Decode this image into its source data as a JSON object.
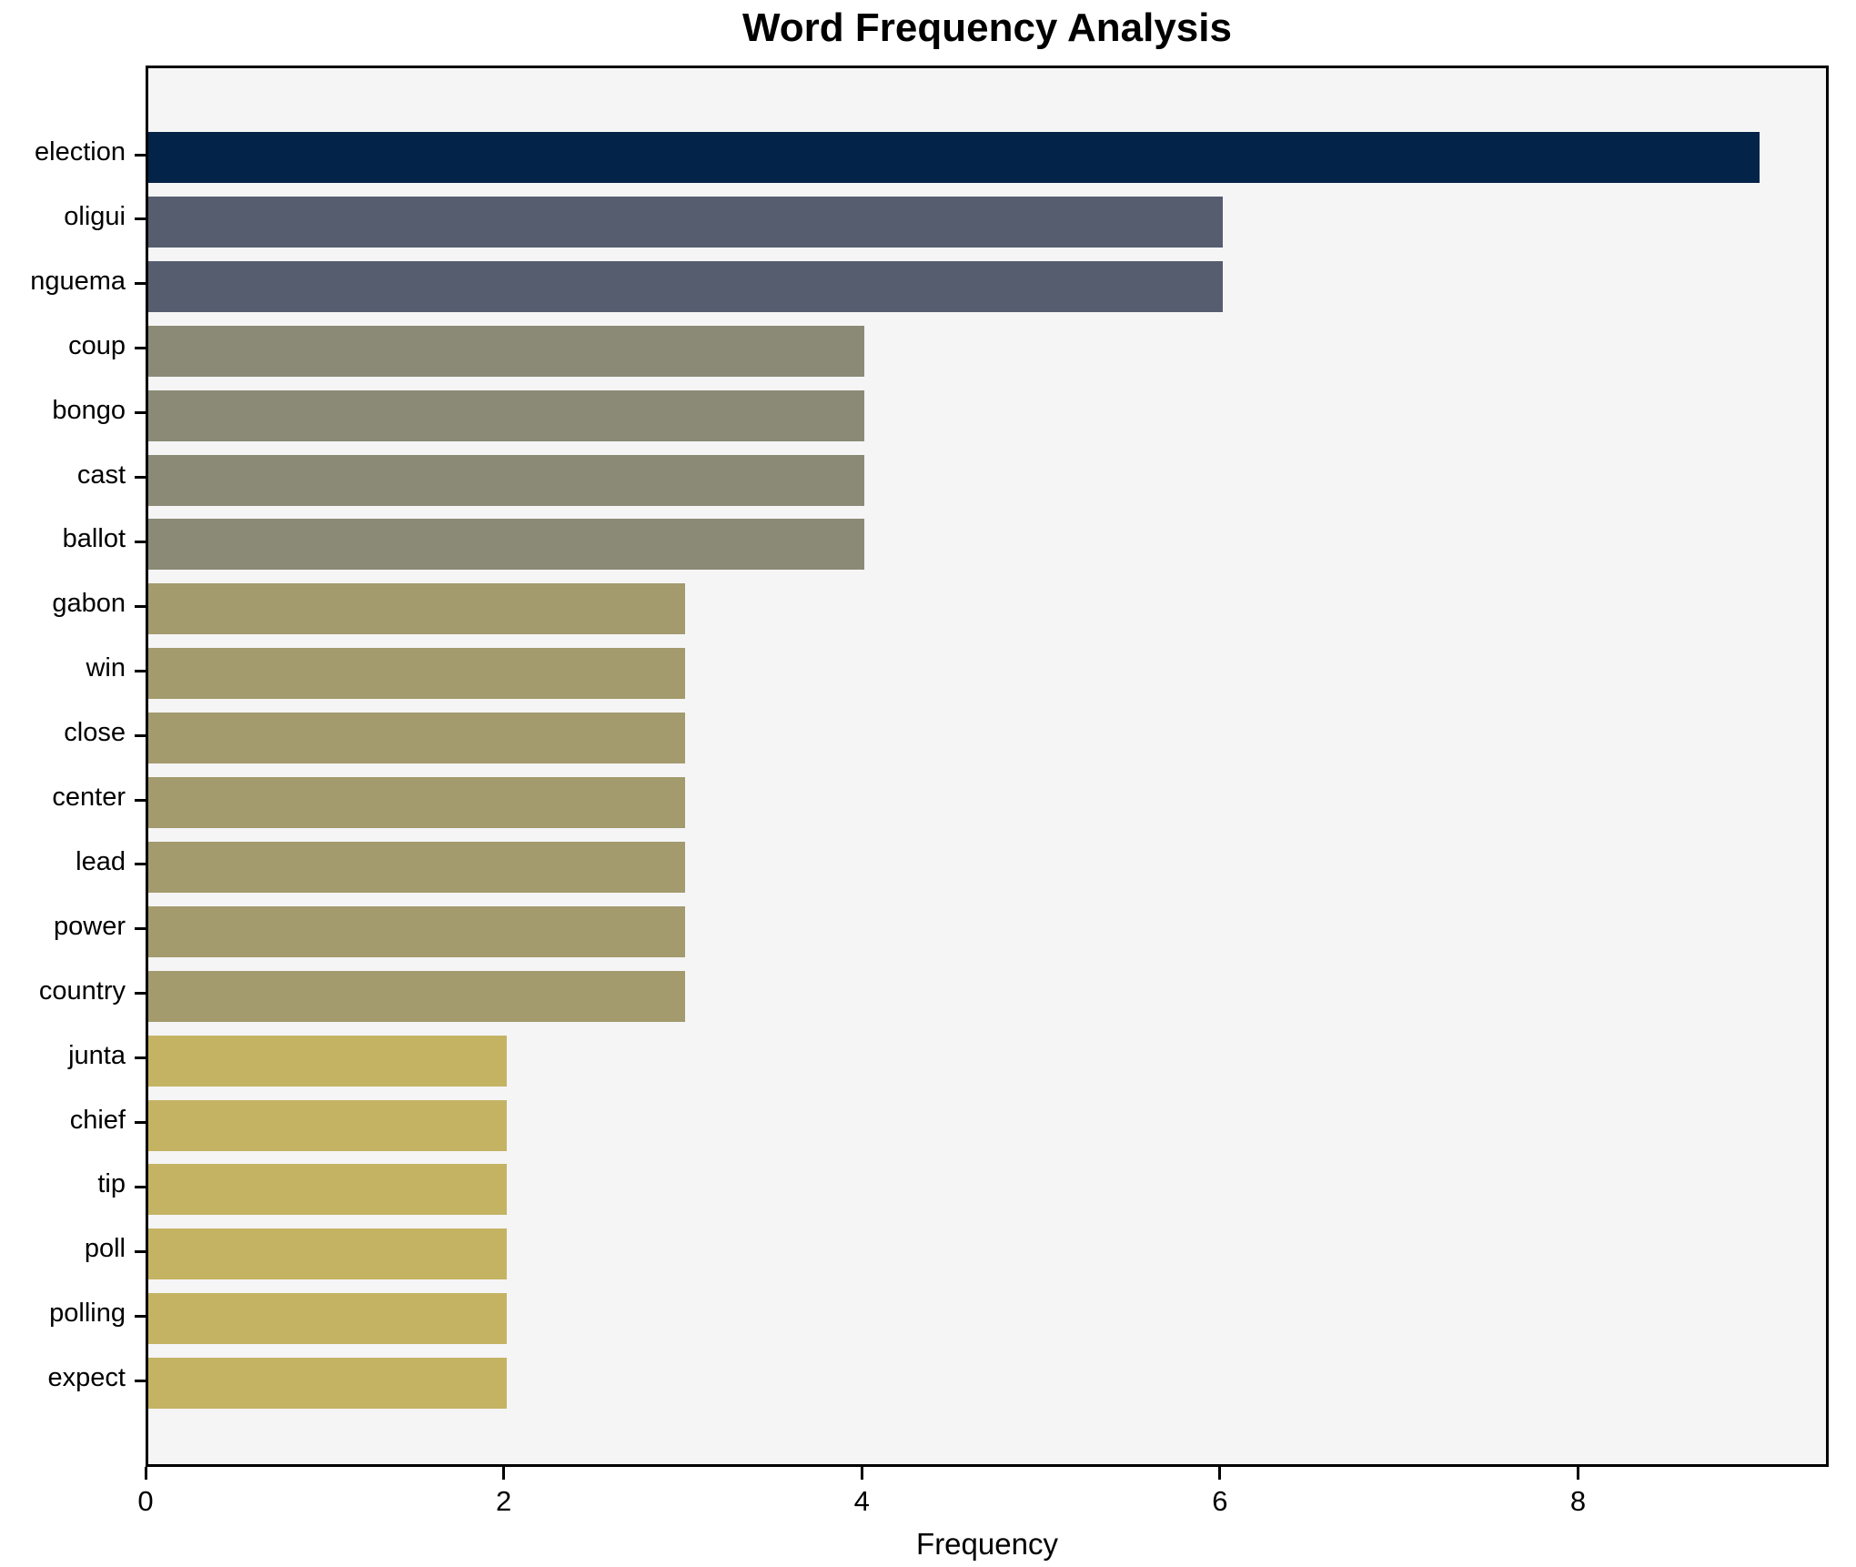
{
  "chart_data": {
    "type": "bar",
    "orientation": "horizontal",
    "title": "Word Frequency Analysis",
    "xlabel": "Frequency",
    "ylabel": "",
    "categories": [
      "election",
      "oligui",
      "nguema",
      "coup",
      "bongo",
      "cast",
      "ballot",
      "gabon",
      "win",
      "close",
      "center",
      "lead",
      "power",
      "country",
      "junta",
      "chief",
      "tip",
      "poll",
      "polling",
      "expect"
    ],
    "values": [
      9,
      6,
      6,
      4,
      4,
      4,
      4,
      3,
      3,
      3,
      3,
      3,
      3,
      3,
      2,
      2,
      2,
      2,
      2,
      2
    ],
    "xlim": [
      0,
      9.4
    ],
    "xticks": [
      0,
      2,
      4,
      6,
      8
    ],
    "grid": false,
    "legend": null,
    "colors_by_value": {
      "9": "#042349",
      "6": "#565d6f",
      "4": "#8b8a76",
      "3": "#a39a6d",
      "2": "#c4b363"
    },
    "plot_background": "#f5f5f6",
    "spine_color": "#000000",
    "text_color": "#000000"
  }
}
